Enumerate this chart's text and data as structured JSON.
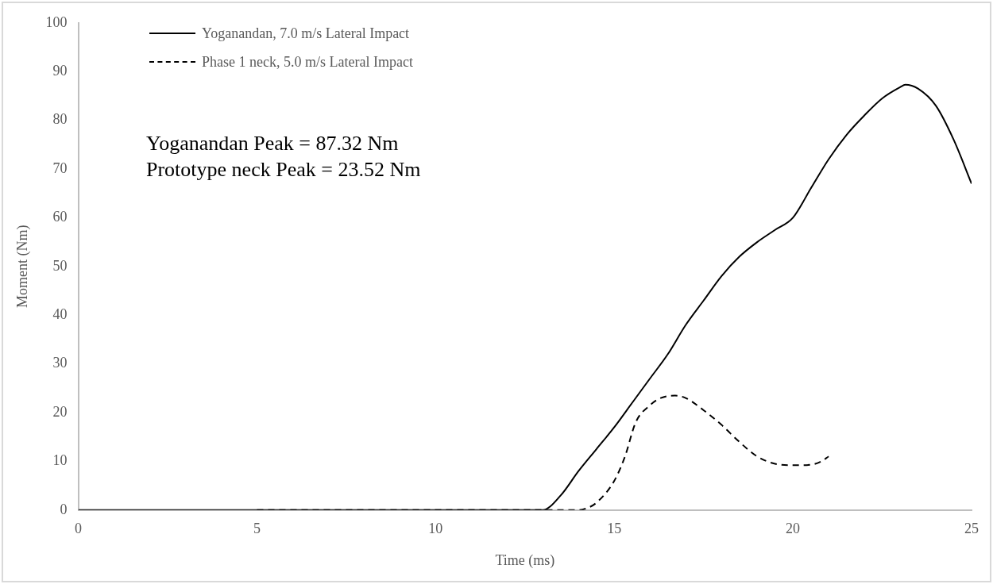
{
  "chart_data": {
    "type": "line",
    "xlabel": "Time (ms)",
    "ylabel": "Moment (Nm)",
    "xlim": [
      0,
      25
    ],
    "xticks": [
      0,
      5,
      10,
      15,
      20,
      25
    ],
    "ylim": [
      0,
      100
    ],
    "yticks": [
      0,
      10,
      20,
      30,
      40,
      50,
      60,
      70,
      80,
      90,
      100
    ],
    "grid": false,
    "legend": "top left",
    "marker": "none",
    "annotations": [
      "Yoganandan Peak = 87.32 Nm",
      "Prototype neck Peak = 23.52 Nm"
    ],
    "series": [
      {
        "name": "Yoganandan, 7.0 m/s Lateral Impact",
        "color": "#000000",
        "line_style": "solid",
        "x": [
          0,
          13,
          13.5,
          14,
          14.5,
          15,
          15.5,
          16,
          16.5,
          17,
          17.5,
          18,
          18.5,
          19,
          19.5,
          20,
          20.5,
          21,
          21.5,
          22,
          22.5,
          23,
          23.15,
          23.5,
          24,
          24.5,
          25
        ],
        "values": [
          0,
          0,
          3,
          8,
          12.5,
          17,
          22,
          27,
          32,
          38,
          43,
          48,
          52,
          55,
          57.5,
          60,
          66,
          72,
          77,
          81,
          84.5,
          86.8,
          87.3,
          86.5,
          83,
          76,
          67
        ]
      },
      {
        "name": "Phase 1 neck, 5.0 m/s Lateral Impact",
        "color": "#000000",
        "line_style": "dashed",
        "x": [
          5,
          10,
          14,
          14.2,
          14.5,
          15,
          15.3,
          15.6,
          16,
          16.3,
          16.7,
          17,
          17.5,
          18,
          18.5,
          19,
          19.5,
          20,
          20.5,
          20.8,
          21
        ],
        "values": [
          0,
          0,
          0,
          0.3,
          1.5,
          6,
          11,
          18,
          21.5,
          23,
          23.5,
          23,
          20.5,
          17.5,
          14,
          11,
          9.5,
          9.2,
          9.3,
          10,
          11
        ]
      }
    ]
  }
}
